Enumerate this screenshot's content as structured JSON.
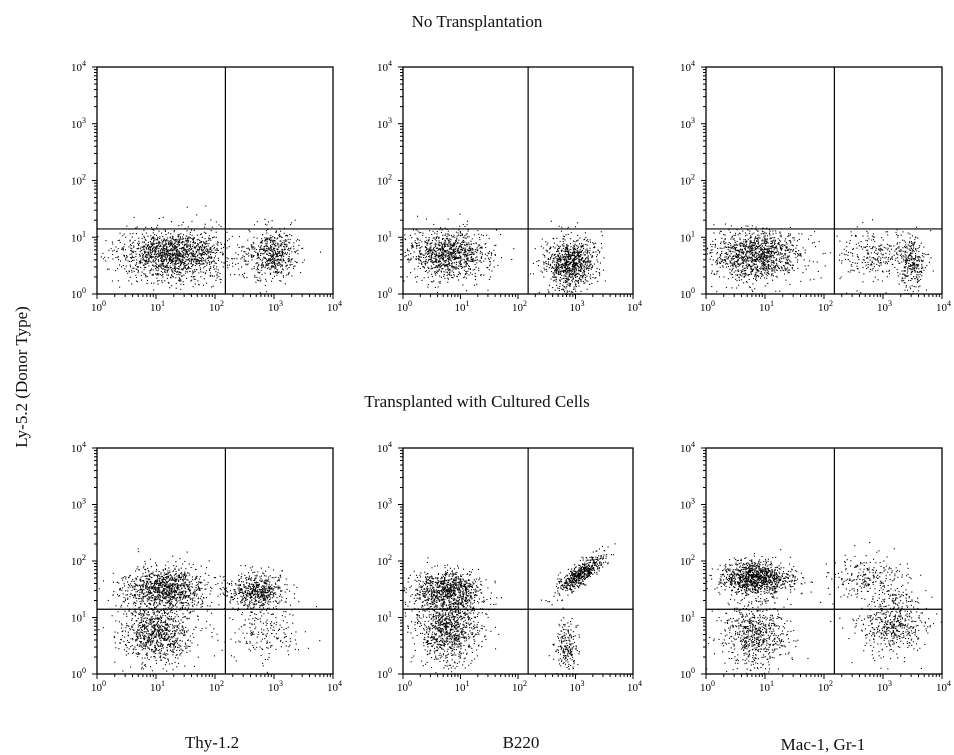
{
  "titles": {
    "top": "No Transplantation",
    "bottom": "Transplanted with Cultured Cells"
  },
  "ylabel": "Ly-5.2 (Donor Type)",
  "xlabels": [
    "Thy-1.2",
    "B220",
    "Mac-1, Gr-1"
  ],
  "chart_data": [
    {
      "type": "scatter",
      "panel": "No Transplantation / Thy-1.2",
      "x_scale": "log",
      "y_scale": "log",
      "xlim": [
        1,
        10000
      ],
      "ylim": [
        1,
        10000
      ],
      "x_ticks": [
        "10^0",
        "10^1",
        "10^2",
        "10^3",
        "10^4"
      ],
      "y_ticks": [
        "10^0",
        "10^1",
        "10^2",
        "10^3",
        "10^4"
      ],
      "quadrant_gate": {
        "x": 150,
        "y": 14
      },
      "populations": [
        {
          "x_center": 20,
          "y_center": 5,
          "x_spread_decades": 0.45,
          "y_spread_decades": 0.22,
          "count": 1500
        },
        {
          "x_center": 900,
          "y_center": 5,
          "x_spread_decades": 0.22,
          "y_spread_decades": 0.22,
          "count": 550
        }
      ]
    },
    {
      "type": "scatter",
      "panel": "No Transplantation / B220",
      "x_scale": "log",
      "y_scale": "log",
      "xlim": [
        1,
        10000
      ],
      "ylim": [
        1,
        10000
      ],
      "x_ticks": [
        "10^0",
        "10^1",
        "10^2",
        "10^3",
        "10^4"
      ],
      "y_ticks": [
        "10^0",
        "10^1",
        "10^2",
        "10^3",
        "10^4"
      ],
      "quadrant_gate": {
        "x": 150,
        "y": 14
      },
      "populations": [
        {
          "x_center": 6,
          "y_center": 5,
          "x_spread_decades": 0.35,
          "y_spread_decades": 0.22,
          "count": 1000
        },
        {
          "x_center": 800,
          "y_center": 3.5,
          "x_spread_decades": 0.22,
          "y_spread_decades": 0.22,
          "count": 900
        }
      ]
    },
    {
      "type": "scatter",
      "panel": "No Transplantation / Mac-1, Gr-1",
      "x_scale": "log",
      "y_scale": "log",
      "xlim": [
        1,
        10000
      ],
      "ylim": [
        1,
        10000
      ],
      "x_ticks": [
        "10^0",
        "10^1",
        "10^2",
        "10^3",
        "10^4"
      ],
      "y_ticks": [
        "10^0",
        "10^1",
        "10^2",
        "10^3",
        "10^4"
      ],
      "quadrant_gate": {
        "x": 150,
        "y": 14
      },
      "populations": [
        {
          "x_center": 7,
          "y_center": 5,
          "x_spread_decades": 0.38,
          "y_spread_decades": 0.22,
          "count": 1200
        },
        {
          "x_center": 600,
          "y_center": 5,
          "x_spread_decades": 0.3,
          "y_spread_decades": 0.22,
          "count": 250
        },
        {
          "x_center": 3000,
          "y_center": 3.5,
          "x_spread_decades": 0.12,
          "y_spread_decades": 0.25,
          "count": 300
        }
      ]
    },
    {
      "type": "scatter",
      "panel": "Transplanted with Cultured Cells / Thy-1.2",
      "x_scale": "log",
      "y_scale": "log",
      "xlim": [
        1,
        10000
      ],
      "ylim": [
        1,
        10000
      ],
      "x_ticks": [
        "10^0",
        "10^1",
        "10^2",
        "10^3",
        "10^4"
      ],
      "y_ticks": [
        "10^0",
        "10^1",
        "10^2",
        "10^3",
        "10^4"
      ],
      "quadrant_gate": {
        "x": 150,
        "y": 14
      },
      "populations": [
        {
          "x_center": 15,
          "y_center": 35,
          "x_spread_decades": 0.35,
          "y_spread_decades": 0.18,
          "count": 1000
        },
        {
          "x_center": 10,
          "y_center": 6,
          "x_spread_decades": 0.3,
          "y_spread_decades": 0.28,
          "count": 900
        },
        {
          "x_center": 500,
          "y_center": 30,
          "x_spread_decades": 0.25,
          "y_spread_decades": 0.15,
          "count": 550
        },
        {
          "x_center": 600,
          "y_center": 6,
          "x_spread_decades": 0.35,
          "y_spread_decades": 0.3,
          "count": 200
        }
      ]
    },
    {
      "type": "scatter",
      "panel": "Transplanted with Cultured Cells / B220",
      "x_scale": "log",
      "y_scale": "log",
      "xlim": [
        1,
        10000
      ],
      "ylim": [
        1,
        10000
      ],
      "x_ticks": [
        "10^0",
        "10^1",
        "10^2",
        "10^3",
        "10^4"
      ],
      "y_ticks": [
        "10^0",
        "10^1",
        "10^2",
        "10^3",
        "10^4"
      ],
      "quadrant_gate": {
        "x": 150,
        "y": 14
      },
      "populations": [
        {
          "x_center": 6,
          "y_center": 30,
          "x_spread_decades": 0.3,
          "y_spread_decades": 0.18,
          "count": 900
        },
        {
          "x_center": 6,
          "y_center": 6,
          "x_spread_decades": 0.28,
          "y_spread_decades": 0.28,
          "count": 900
        },
        {
          "x_center": 1200,
          "y_center": 60,
          "x_spread_decades": 0.2,
          "y_spread_decades": 0.1,
          "count": 550,
          "slope": 0.65
        },
        {
          "x_center": 700,
          "y_center": 3,
          "x_spread_decades": 0.1,
          "y_spread_decades": 0.25,
          "count": 200
        }
      ]
    },
    {
      "type": "scatter",
      "panel": "Transplanted with Cultured Cells / Mac-1, Gr-1",
      "x_scale": "log",
      "y_scale": "log",
      "xlim": [
        1,
        10000
      ],
      "ylim": [
        1,
        10000
      ],
      "x_ticks": [
        "10^0",
        "10^1",
        "10^2",
        "10^3",
        "10^4"
      ],
      "y_ticks": [
        "10^0",
        "10^1",
        "10^2",
        "10^3",
        "10^4"
      ],
      "quadrant_gate": {
        "x": 150,
        "y": 14
      },
      "populations": [
        {
          "x_center": 7,
          "y_center": 50,
          "x_spread_decades": 0.3,
          "y_spread_decades": 0.15,
          "count": 1100
        },
        {
          "x_center": 7,
          "y_center": 5,
          "x_spread_decades": 0.28,
          "y_spread_decades": 0.28,
          "count": 650
        },
        {
          "x_center": 600,
          "y_center": 50,
          "x_spread_decades": 0.35,
          "y_spread_decades": 0.2,
          "count": 250
        },
        {
          "x_center": 1500,
          "y_center": 8,
          "x_spread_decades": 0.28,
          "y_spread_decades": 0.28,
          "count": 500
        }
      ]
    }
  ]
}
